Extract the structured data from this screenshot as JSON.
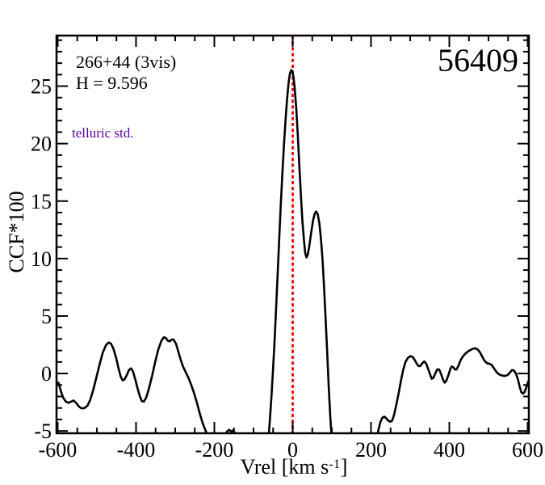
{
  "chart_data": {
    "type": "line",
    "epoch_label": "56409",
    "annotations": {
      "source_id": "266+44 (3vis)",
      "h_magnitude": "H = 9.596",
      "telluric": "telluric std."
    },
    "annotation_colors": {
      "source_id": "#000000",
      "h_magnitude": "#000000",
      "telluric": "#5c0099"
    },
    "xlabel": {
      "prefix": "Vrel [km s",
      "sup": "-1",
      "suffix": "]"
    },
    "ylabel": "CCF*100",
    "x_axis": {
      "range": [
        -603,
        603
      ],
      "major_ticks": [
        -600,
        -400,
        -200,
        0,
        200,
        400,
        600
      ],
      "major_tick_labels": [
        "-600",
        "-400",
        "-200",
        "0",
        "200",
        "400",
        "600"
      ],
      "minor_step": 50
    },
    "y_axis": {
      "range": [
        -5.2,
        29.4
      ],
      "major_ticks": [
        -5,
        0,
        5,
        10,
        15,
        20,
        25
      ],
      "major_tick_labels": [
        "-5",
        "0",
        "5",
        "10",
        "15",
        "20",
        "25"
      ],
      "minor_step": 1
    },
    "grid": false,
    "reference_line": {
      "x": 0,
      "color": "#ee0000",
      "style": "dotted"
    },
    "series": [
      {
        "name": "ccf-curve",
        "color": "#000000",
        "segments": [
          [
            [
              -598,
              -0.8
            ],
            [
              -592,
              -1.5
            ],
            [
              -586,
              -2.1
            ],
            [
              -579,
              -2.45
            ],
            [
              -572,
              -2.55
            ],
            [
              -566,
              -2.45
            ],
            [
              -559,
              -2.35
            ],
            [
              -552,
              -2.6
            ],
            [
              -545,
              -2.9
            ],
            [
              -538,
              -3.05
            ],
            [
              -531,
              -3.0
            ],
            [
              -524,
              -2.8
            ],
            [
              -517,
              -2.3
            ],
            [
              -509,
              -1.4
            ],
            [
              -501,
              -0.3
            ],
            [
              -493,
              0.8
            ],
            [
              -485,
              1.8
            ],
            [
              -477,
              2.45
            ],
            [
              -470,
              2.7
            ],
            [
              -464,
              2.6
            ],
            [
              -458,
              2.2
            ],
            [
              -451,
              1.4
            ],
            [
              -445,
              0.5
            ],
            [
              -439,
              -0.3
            ],
            [
              -434,
              -0.6
            ],
            [
              -429,
              -0.5
            ],
            [
              -423,
              -0.1
            ],
            [
              -418,
              0.3
            ],
            [
              -413,
              0.45
            ],
            [
              -408,
              0.2
            ],
            [
              -402,
              -0.5
            ],
            [
              -396,
              -1.3
            ],
            [
              -390,
              -2.0
            ],
            [
              -385,
              -2.4
            ],
            [
              -380,
              -2.45
            ],
            [
              -374,
              -2.1
            ],
            [
              -367,
              -1.3
            ],
            [
              -359,
              -0.2
            ],
            [
              -351,
              1.0
            ],
            [
              -343,
              2.1
            ],
            [
              -335,
              2.85
            ],
            [
              -329,
              3.15
            ],
            [
              -324,
              3.1
            ],
            [
              -319,
              2.85
            ],
            [
              -314,
              2.8
            ],
            [
              -309,
              2.95
            ],
            [
              -304,
              2.95
            ],
            [
              -298,
              2.6
            ],
            [
              -292,
              1.9
            ],
            [
              -286,
              1.2
            ],
            [
              -280,
              0.6
            ],
            [
              -273,
              0.1
            ],
            [
              -266,
              -0.4
            ],
            [
              -259,
              -1.0
            ],
            [
              -252,
              -1.7
            ],
            [
              -245,
              -2.5
            ],
            [
              -238,
              -3.4
            ],
            [
              -230,
              -4.3
            ],
            [
              -222,
              -5.0
            ],
            [
              -215,
              -5.5
            ],
            [
              -210,
              -5.8
            ]
          ],
          [
            [
              -175,
              -5.7
            ],
            [
              -168,
              -5.05
            ],
            [
              -162,
              -4.9
            ],
            [
              -157,
              -5.05
            ],
            [
              -152,
              -4.95
            ],
            [
              -146,
              -5.25
            ],
            [
              -141,
              -5.7
            ]
          ],
          [
            [
              -62,
              -5.8
            ],
            [
              -58,
              -3.9
            ],
            [
              -54,
              -1.9
            ],
            [
              -50,
              0.4
            ],
            [
              -46,
              3.0
            ],
            [
              -42,
              5.9
            ],
            [
              -38,
              9.0
            ],
            [
              -34,
              12.0
            ],
            [
              -30,
              14.9
            ],
            [
              -26,
              17.6
            ],
            [
              -22,
              20.0
            ],
            [
              -18,
              22.2
            ],
            [
              -14,
              24.0
            ],
            [
              -10,
              25.4
            ],
            [
              -7,
              26.1
            ],
            [
              -4,
              26.4
            ],
            [
              -1,
              26.3
            ],
            [
              2,
              25.8
            ],
            [
              5,
              24.9
            ],
            [
              9,
              23.1
            ],
            [
              13,
              20.8
            ],
            [
              17,
              18.1
            ],
            [
              21,
              15.5
            ],
            [
              25,
              13.2
            ],
            [
              29,
              11.5
            ],
            [
              32,
              10.5
            ],
            [
              35,
              10.1
            ],
            [
              38,
              10.25
            ],
            [
              42,
              11.0
            ],
            [
              47,
              12.2
            ],
            [
              52,
              13.3
            ],
            [
              56,
              13.9
            ],
            [
              60,
              14.1
            ],
            [
              64,
              13.85
            ],
            [
              68,
              13.1
            ],
            [
              72,
              11.8
            ],
            [
              76,
              10.0
            ],
            [
              80,
              7.6
            ],
            [
              84,
              4.9
            ],
            [
              88,
              1.9
            ],
            [
              92,
              -1.1
            ],
            [
              96,
              -3.8
            ],
            [
              100,
              -5.8
            ]
          ],
          [
            [
              214,
              -5.8
            ],
            [
              219,
              -4.9
            ],
            [
              224,
              -4.2
            ],
            [
              229,
              -3.85
            ],
            [
              234,
              -3.75
            ],
            [
              239,
              -3.9
            ],
            [
              244,
              -4.1
            ],
            [
              249,
              -4.2
            ],
            [
              254,
              -4.1
            ],
            [
              259,
              -3.6
            ],
            [
              264,
              -2.8
            ],
            [
              270,
              -1.8
            ],
            [
              276,
              -0.7
            ],
            [
              282,
              0.3
            ],
            [
              288,
              1.0
            ],
            [
              294,
              1.35
            ],
            [
              300,
              1.5
            ],
            [
              306,
              1.45
            ],
            [
              311,
              1.2
            ],
            [
              316,
              0.9
            ],
            [
              321,
              0.65
            ],
            [
              326,
              0.65
            ],
            [
              331,
              0.9
            ],
            [
              336,
              1.05
            ],
            [
              341,
              0.85
            ],
            [
              346,
              0.4
            ],
            [
              351,
              -0.1
            ],
            [
              355,
              -0.45
            ],
            [
              359,
              -0.4
            ],
            [
              364,
              0.0
            ],
            [
              369,
              0.35
            ],
            [
              374,
              0.35
            ],
            [
              379,
              -0.05
            ],
            [
              384,
              -0.55
            ],
            [
              388,
              -0.8
            ],
            [
              392,
              -0.65
            ],
            [
              397,
              -0.2
            ],
            [
              402,
              0.35
            ],
            [
              406,
              0.6
            ],
            [
              410,
              0.55
            ],
            [
              414,
              0.35
            ],
            [
              418,
              0.35
            ],
            [
              423,
              0.65
            ],
            [
              428,
              1.1
            ],
            [
              434,
              1.45
            ],
            [
              440,
              1.7
            ],
            [
              447,
              1.9
            ],
            [
              454,
              2.05
            ],
            [
              460,
              2.15
            ],
            [
              466,
              2.2
            ],
            [
              472,
              2.1
            ],
            [
              478,
              1.85
            ],
            [
              484,
              1.45
            ],
            [
              490,
              1.1
            ],
            [
              496,
              0.9
            ],
            [
              502,
              0.85
            ],
            [
              508,
              0.75
            ],
            [
              514,
              0.45
            ],
            [
              520,
              0.15
            ],
            [
              526,
              -0.05
            ],
            [
              532,
              -0.15
            ],
            [
              538,
              -0.2
            ],
            [
              544,
              -0.2
            ],
            [
              550,
              -0.1
            ],
            [
              555,
              0.1
            ],
            [
              560,
              0.3
            ],
            [
              565,
              0.25
            ],
            [
              570,
              0.0
            ],
            [
              575,
              -0.5
            ],
            [
              580,
              -1.2
            ],
            [
              584,
              -1.65
            ],
            [
              588,
              -1.75
            ],
            [
              592,
              -1.6
            ],
            [
              596,
              -1.25
            ],
            [
              600,
              -0.85
            ],
            [
              603,
              -0.6
            ]
          ]
        ]
      }
    ],
    "peak_values": {
      "main_peak": [
        -4,
        26.4
      ],
      "secondary_peak": [
        60,
        14.1
      ]
    }
  },
  "layout_colors": {
    "axis": "#000000",
    "background": "#ffffff"
  }
}
